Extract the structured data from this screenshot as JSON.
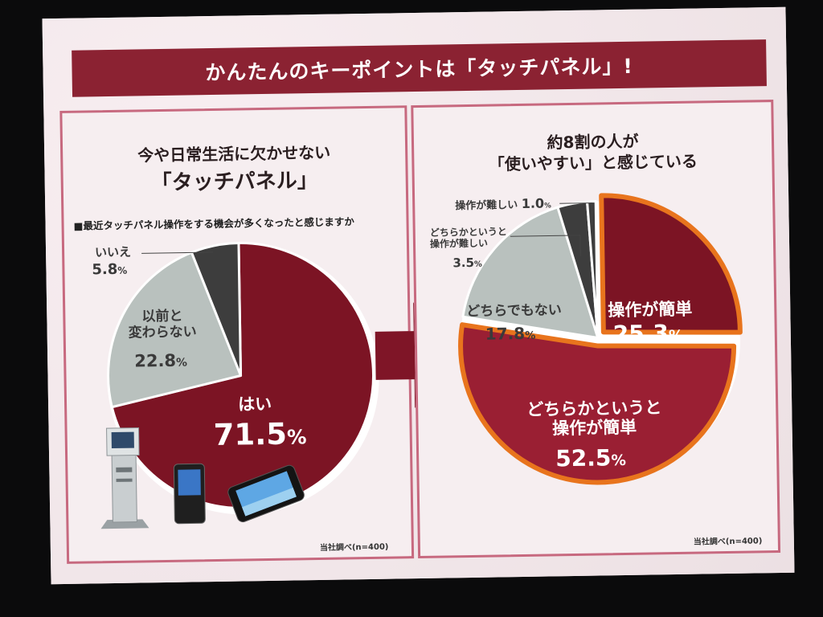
{
  "title": "かんたんのキーポイントは「タッチパネル」!",
  "left_panel": {
    "heading_line1": "今や日常生活に欠かせない",
    "heading_line2": "「タッチパネル」",
    "question": "■最近タッチパネル操作をする機会が多くなったと感じますか",
    "labels": {
      "yes": "はい",
      "yes_value": "71.5",
      "yes_unit": "%",
      "same_line1": "以前と",
      "same_line2": "変わらない",
      "same_value": "22.8",
      "same_unit": "%",
      "no": "いいえ",
      "no_value": "5.8",
      "no_unit": "%"
    },
    "source": "当社調べ(n=400)"
  },
  "right_panel": {
    "heading_line1": "約8割の人が",
    "heading_line2": "「使いやすい」と感じている",
    "labels": {
      "easy": "操作が簡単",
      "easy_value": "25.3",
      "easy_unit": "%",
      "rather_easy_line1": "どちらかというと",
      "rather_easy_line2": "操作が簡単",
      "rather_easy_value": "52.5",
      "rather_easy_unit": "%",
      "neutral": "どちらでもない",
      "neutral_value": "17.8",
      "neutral_unit": "%",
      "rather_hard_line1": "どちらかというと",
      "rather_hard_line2": "操作が難しい",
      "rather_hard_value": "3.5",
      "rather_hard_unit": "%",
      "hard": "操作が難しい",
      "hard_value": "1.0",
      "hard_unit": "%"
    },
    "source": "当社調べ(n=400)"
  },
  "colors": {
    "maroon": "#7c1424",
    "crimson": "#9a1f33",
    "gray": "#b9c1be",
    "dark": "#3d3d3d",
    "orange": "#e8741d"
  },
  "chart_data": [
    {
      "type": "pie",
      "title": "最近タッチパネル操作をする機会が多くなったと感じますか",
      "categories": [
        "はい",
        "以前と変わらない",
        "いいえ"
      ],
      "values": [
        71.5,
        22.8,
        5.8
      ],
      "unit": "%",
      "colors": [
        "#7c1424",
        "#b9c1be",
        "#3d3d3d"
      ]
    },
    {
      "type": "pie",
      "title": "約8割の人が「使いやすい」と感じている",
      "categories": [
        "操作が簡単",
        "どちらかというと操作が簡単",
        "どちらでもない",
        "どちらかというと操作が難しい",
        "操作が難しい"
      ],
      "values": [
        25.3,
        52.5,
        17.8,
        3.5,
        1.0
      ],
      "unit": "%",
      "colors": [
        "#7c1424",
        "#9a1f33",
        "#b9c1be",
        "#3d3d3d",
        "#3d3d3d"
      ],
      "highlighted": [
        "操作が簡単",
        "どちらかというと操作が簡単"
      ],
      "highlight_color": "#e8741d"
    }
  ]
}
